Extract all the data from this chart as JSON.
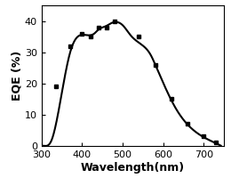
{
  "marker_wavelengths": [
    335,
    370,
    400,
    420,
    440,
    460,
    480,
    540,
    580,
    620,
    660,
    700,
    730
  ],
  "marker_eqe": [
    19,
    32,
    36,
    35,
    38,
    38,
    40,
    35,
    26,
    15,
    7,
    3,
    1
  ],
  "smooth_wavelengths": [
    300,
    308,
    316,
    324,
    332,
    340,
    350,
    360,
    370,
    380,
    390,
    400,
    410,
    420,
    430,
    440,
    450,
    460,
    470,
    480,
    490,
    500,
    510,
    520,
    530,
    540,
    550,
    560,
    570,
    580,
    590,
    600,
    610,
    620,
    630,
    640,
    650,
    660,
    670,
    680,
    690,
    700,
    710,
    720,
    730,
    740
  ],
  "smooth_eqe": [
    0,
    0.1,
    0.3,
    1.5,
    5,
    10,
    17,
    24,
    30,
    33,
    35,
    36,
    35.5,
    35,
    36,
    37.5,
    38,
    38.2,
    39,
    40,
    39.5,
    38.5,
    37,
    35.5,
    34,
    33,
    32,
    31,
    29,
    26,
    23,
    20,
    17.5,
    15,
    12,
    10,
    8.5,
    7,
    5.5,
    4.2,
    3.5,
    3,
    2.2,
    1.5,
    0.8,
    0.2
  ],
  "xlabel": "Wavelength(nm)",
  "ylabel": "EQE (%)",
  "xlim": [
    300,
    750
  ],
  "ylim": [
    0,
    45
  ],
  "xticks": [
    300,
    400,
    500,
    600,
    700
  ],
  "yticks": [
    0,
    10,
    20,
    30,
    40
  ],
  "line_color": "#000000",
  "marker_color": "#000000",
  "marker_style": "s",
  "marker_size": 3.5,
  "line_width": 1.5,
  "background_color": "#ffffff",
  "xlabel_fontsize": 9,
  "ylabel_fontsize": 9,
  "tick_fontsize": 8
}
